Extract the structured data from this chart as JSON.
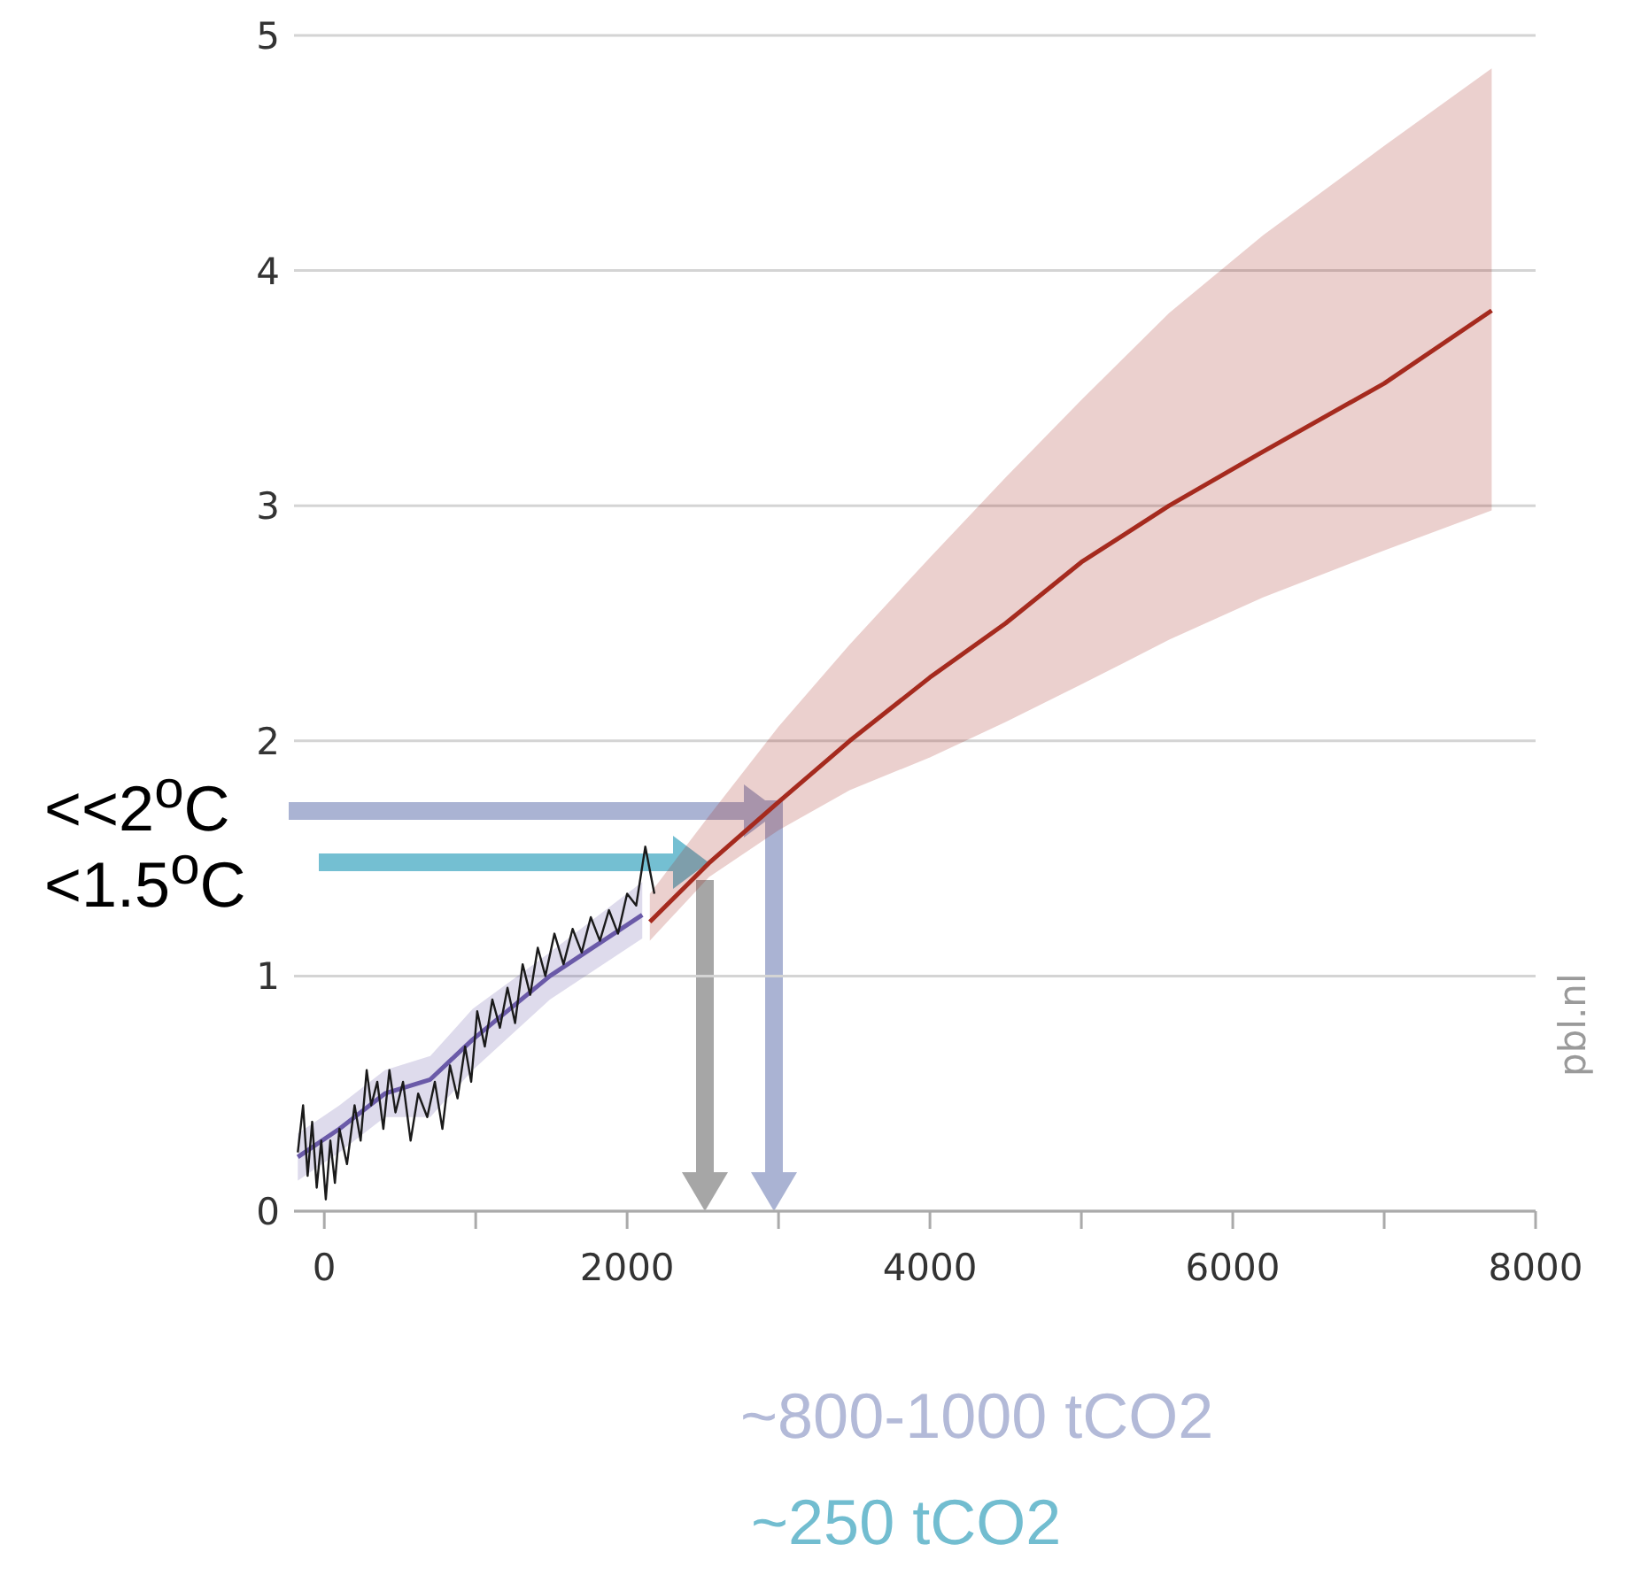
{
  "chart_data": {
    "type": "line",
    "xlim": [
      -200,
      8000
    ],
    "xticks": [
      0,
      {
        "value": 1000,
        "label": null
      },
      2000,
      {
        "value": 3000,
        "label": null
      },
      4000,
      {
        "value": 5000,
        "label": null
      },
      6000,
      {
        "value": 7000,
        "label": null
      },
      8000
    ],
    "ylim": [
      0,
      5
    ],
    "yticks": [
      0,
      1,
      2,
      3,
      4,
      5
    ],
    "grid": "y",
    "marker": "none",
    "series": [
      {
        "color": "#6a5aa8",
        "x": [
          -175,
          100,
          400,
          700,
          980,
          1490,
          2100
        ],
        "values": [
          0.23,
          0.35,
          0.5,
          0.56,
          0.73,
          1.0,
          1.26
        ],
        "lower": [
          0.13,
          0.25,
          0.4,
          0.4,
          0.6,
          0.9,
          1.16
        ],
        "upper": [
          0.33,
          0.45,
          0.6,
          0.66,
          0.86,
          1.1,
          1.4
        ]
      },
      {
        "color": "#1a1a1a",
        "x": [
          -175,
          -140,
          -110,
          -80,
          -50,
          -20,
          10,
          40,
          70,
          100,
          150,
          200,
          240,
          280,
          310,
          350,
          390,
          430,
          470,
          520,
          570,
          620,
          680,
          730,
          780,
          830,
          880,
          930,
          970,
          1010,
          1060,
          1110,
          1160,
          1210,
          1260,
          1310,
          1360,
          1410,
          1460,
          1520,
          1580,
          1640,
          1700,
          1760,
          1820,
          1880,
          1940,
          2000,
          2060,
          2120,
          2180
        ],
        "values": [
          0.25,
          0.45,
          0.15,
          0.38,
          0.1,
          0.3,
          0.05,
          0.3,
          0.12,
          0.35,
          0.2,
          0.45,
          0.3,
          0.6,
          0.45,
          0.55,
          0.35,
          0.6,
          0.42,
          0.55,
          0.3,
          0.5,
          0.4,
          0.55,
          0.35,
          0.62,
          0.48,
          0.7,
          0.55,
          0.85,
          0.7,
          0.9,
          0.78,
          0.95,
          0.8,
          1.05,
          0.92,
          1.12,
          1.0,
          1.18,
          1.05,
          1.2,
          1.1,
          1.25,
          1.15,
          1.28,
          1.18,
          1.35,
          1.3,
          1.55,
          1.35
        ]
      },
      {
        "color": "#a52a1e",
        "x": [
          2150,
          2540,
          3000,
          3470,
          4000,
          4500,
          5000,
          5580,
          6200,
          7000,
          7710
        ],
        "values": [
          1.23,
          1.48,
          1.74,
          2.0,
          2.27,
          2.5,
          2.76,
          3.0,
          3.23,
          3.52,
          3.83
        ],
        "lower": [
          1.15,
          1.42,
          1.62,
          1.79,
          1.93,
          2.08,
          2.24,
          2.43,
          2.61,
          2.81,
          2.98
        ],
        "upper": [
          1.35,
          1.68,
          2.06,
          2.41,
          2.78,
          3.12,
          3.45,
          3.82,
          4.15,
          4.53,
          4.86
        ]
      }
    ],
    "annotations": [
      "<<2$^{o}$C",
      "<1.5$^{o}$C",
      "~800-1000 tCO2",
      "~250 tCO2",
      "pbl.nl"
    ]
  }
}
